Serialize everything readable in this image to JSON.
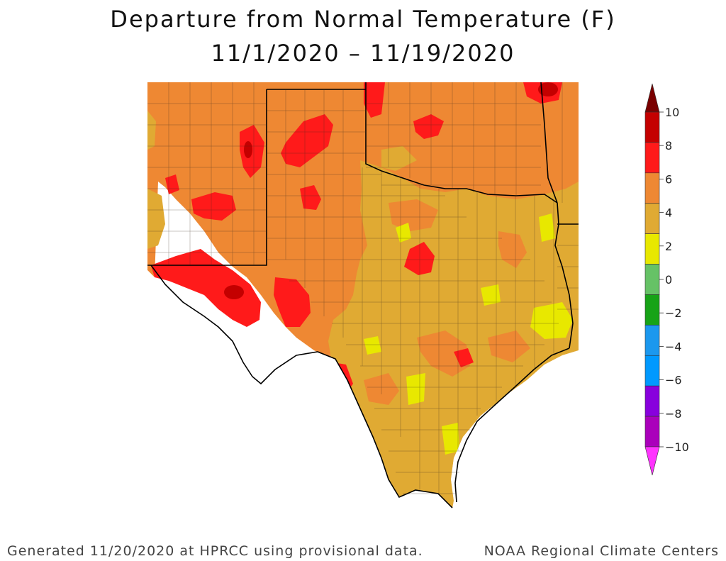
{
  "title": "Departure from Normal Temperature (F)",
  "subtitle": "11/1/2020 – 11/19/2020",
  "legend": {
    "ticks": [
      "10",
      "8",
      "6",
      "4",
      "2",
      "0",
      "−2",
      "−4",
      "−6",
      "−8",
      "−10"
    ],
    "bins": [
      {
        "color": "#7a0000"
      },
      {
        "color": "#c40000"
      },
      {
        "color": "#ff1a1a"
      },
      {
        "color": "#ee8833"
      },
      {
        "color": "#e0aa33"
      },
      {
        "color": "#e8e800"
      },
      {
        "color": "#66c266"
      },
      {
        "color": "#17a317"
      },
      {
        "color": "#1b98ee"
      },
      {
        "color": "#0099ff"
      },
      {
        "color": "#8800dd"
      },
      {
        "color": "#aa00bb"
      },
      {
        "color": "#ff33ff"
      }
    ]
  },
  "map_colors": {
    "orange_4_6": "#ee8833",
    "gold_2_4": "#e0aa33",
    "yellow_0_2": "#e8e800",
    "red_6_8": "#ff1a1a",
    "darkred_8_10": "#c40000",
    "border": "#000000"
  },
  "footer_left": "Generated 11/20/2020 at HPRCC using provisional data.",
  "footer_right": "NOAA Regional Climate Centers"
}
